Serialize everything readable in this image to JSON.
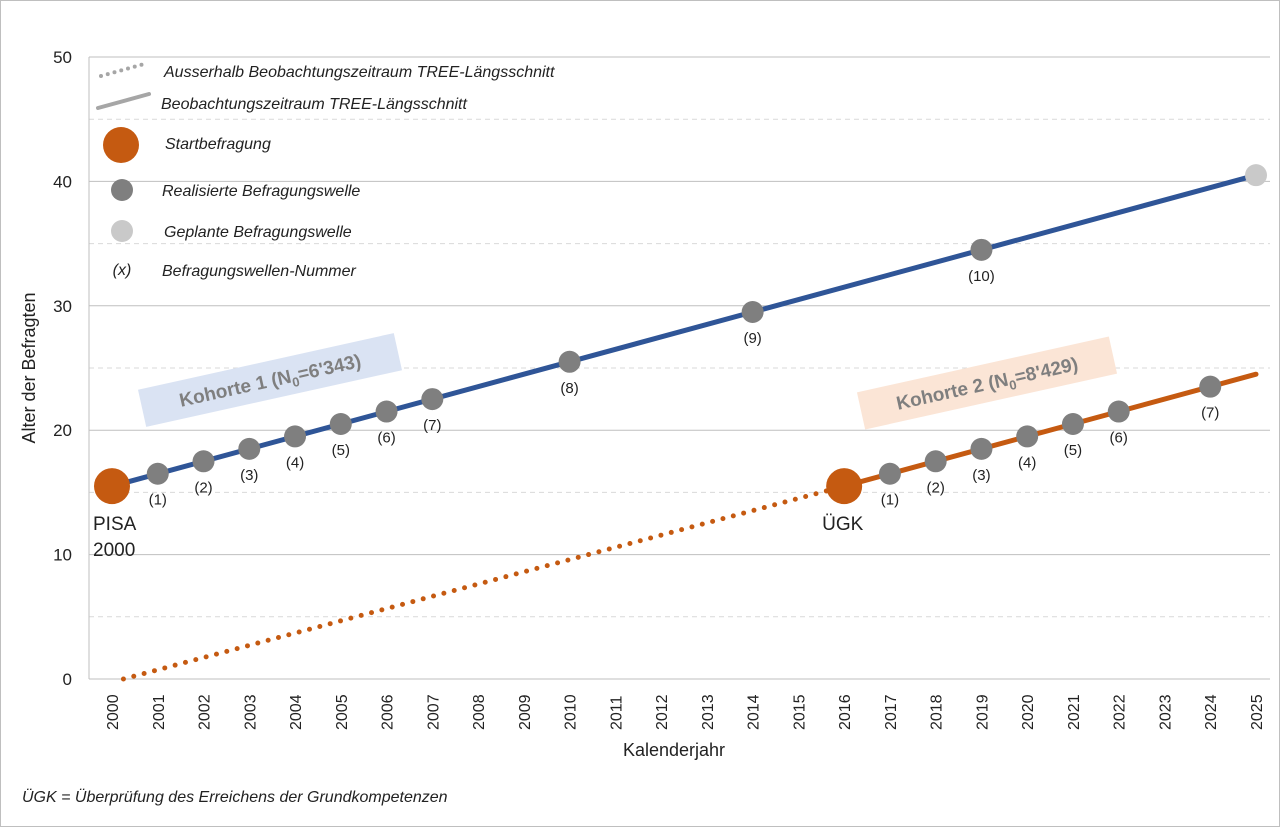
{
  "chart_data": {
    "type": "line",
    "xlabel": "Kalenderjahr",
    "ylabel": "Alter der Befragten",
    "xlim": [
      2000,
      2025
    ],
    "ylim": [
      0,
      50
    ],
    "yticks": [
      0,
      10,
      20,
      30,
      40,
      50
    ],
    "x_ticks": [
      "2000",
      "2001",
      "2002",
      "2003",
      "2004",
      "2005",
      "2006",
      "2007",
      "2008",
      "2009",
      "2010",
      "2011",
      "2012",
      "2013",
      "2014",
      "2015",
      "2016",
      "2017",
      "2018",
      "2019",
      "2020",
      "2021",
      "2022",
      "2023",
      "2024",
      "2025"
    ],
    "grid": "horizontal (solid at 10s, dashed at 5s)",
    "legend_position": "top-left",
    "legend": [
      {
        "label": "Ausserhalb Beobachtungszeitraum TREE-Längsschnitt",
        "symbol": "dotted-line"
      },
      {
        "label": "Beobachtungszeitraum TREE-Längsschnitt",
        "symbol": "solid-line"
      },
      {
        "label": "Startbefragung",
        "symbol": "large-orange-dot"
      },
      {
        "label": "Realisierte Befragungswelle",
        "symbol": "gray-dot"
      },
      {
        "label": "Geplante Befragungswelle",
        "symbol": "light-gray-dot"
      },
      {
        "label": "Befragungswellen-Nummer",
        "symbol": "(x)"
      }
    ],
    "series": [
      {
        "name": "Kohorte 1",
        "label_main": "Kohorte 1 (N",
        "label_sub": "0",
        "label_rest": "=6'343)",
        "color": "#2f5597",
        "label_bg": "#dae3f3",
        "line": {
          "x": [
            2000,
            2025
          ],
          "y": [
            15.5,
            40.5
          ]
        },
        "start": {
          "x": 2000,
          "y": 15.5,
          "label": [
            "PISA",
            "2000"
          ]
        },
        "waves": [
          {
            "x": 2001,
            "y": 16.5,
            "n": "(1)"
          },
          {
            "x": 2002,
            "y": 17.5,
            "n": "(2)"
          },
          {
            "x": 2003,
            "y": 18.5,
            "n": "(3)"
          },
          {
            "x": 2004,
            "y": 19.5,
            "n": "(4)"
          },
          {
            "x": 2005,
            "y": 20.5,
            "n": "(5)"
          },
          {
            "x": 2006,
            "y": 21.5,
            "n": "(6)"
          },
          {
            "x": 2007,
            "y": 22.5,
            "n": "(7)"
          },
          {
            "x": 2010,
            "y": 25.5,
            "n": "(8)"
          },
          {
            "x": 2014,
            "y": 29.5,
            "n": "(9)"
          },
          {
            "x": 2019,
            "y": 34.5,
            "n": "(10)"
          }
        ],
        "planned": [
          {
            "x": 2025,
            "y": 40.5
          }
        ]
      },
      {
        "name": "Kohorte 2",
        "label_main": "Kohorte 2 (N",
        "label_sub": "0",
        "label_rest": "=8'429)",
        "color": "#c55a11",
        "label_bg": "#fbe5d6",
        "dotted": {
          "x": [
            2000.25,
            2016
          ],
          "y": [
            0,
            15.5
          ]
        },
        "line": {
          "x": [
            2016,
            2025
          ],
          "y": [
            15.5,
            24.5
          ]
        },
        "start": {
          "x": 2016,
          "y": 15.5,
          "label": [
            "ÜGK"
          ]
        },
        "waves": [
          {
            "x": 2017,
            "y": 16.5,
            "n": "(1)"
          },
          {
            "x": 2018,
            "y": 17.5,
            "n": "(2)"
          },
          {
            "x": 2019,
            "y": 18.5,
            "n": "(3)"
          },
          {
            "x": 2020,
            "y": 19.5,
            "n": "(4)"
          },
          {
            "x": 2021,
            "y": 20.5,
            "n": "(5)"
          },
          {
            "x": 2022,
            "y": 21.5,
            "n": "(6)"
          },
          {
            "x": 2024,
            "y": 23.5,
            "n": "(7)"
          }
        ],
        "planned": []
      }
    ],
    "footnote": "ÜGK = Überprüfung des Erreichens der Grundkompetenzen",
    "colors": {
      "start_marker": "#c55a11",
      "realized_marker": "#7f7f7f",
      "planned_marker": "#c9c9c9",
      "legend_line": "#a6a6a6"
    }
  }
}
